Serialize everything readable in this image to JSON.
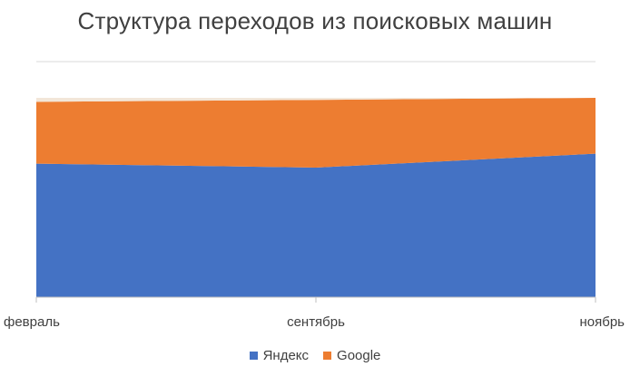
{
  "chart_data": {
    "type": "area",
    "stacked": true,
    "title": "Структура переходов из поисковых машин",
    "categories": [
      "февраль",
      "сентябрь",
      "ноябрь"
    ],
    "series": [
      {
        "name": "Яндекс",
        "values": [
          0.67,
          0.65,
          0.72
        ],
        "color": "#4472C4"
      },
      {
        "name": "Google",
        "values": [
          0.31,
          0.34,
          0.28
        ],
        "color": "#ED7D31"
      },
      {
        "name": "",
        "values": [
          0.02,
          0.01,
          0.0
        ],
        "color": "#F2E6D8"
      }
    ],
    "ylim": [
      0,
      1.0
    ],
    "grid": true,
    "legend_position": "bottom"
  }
}
